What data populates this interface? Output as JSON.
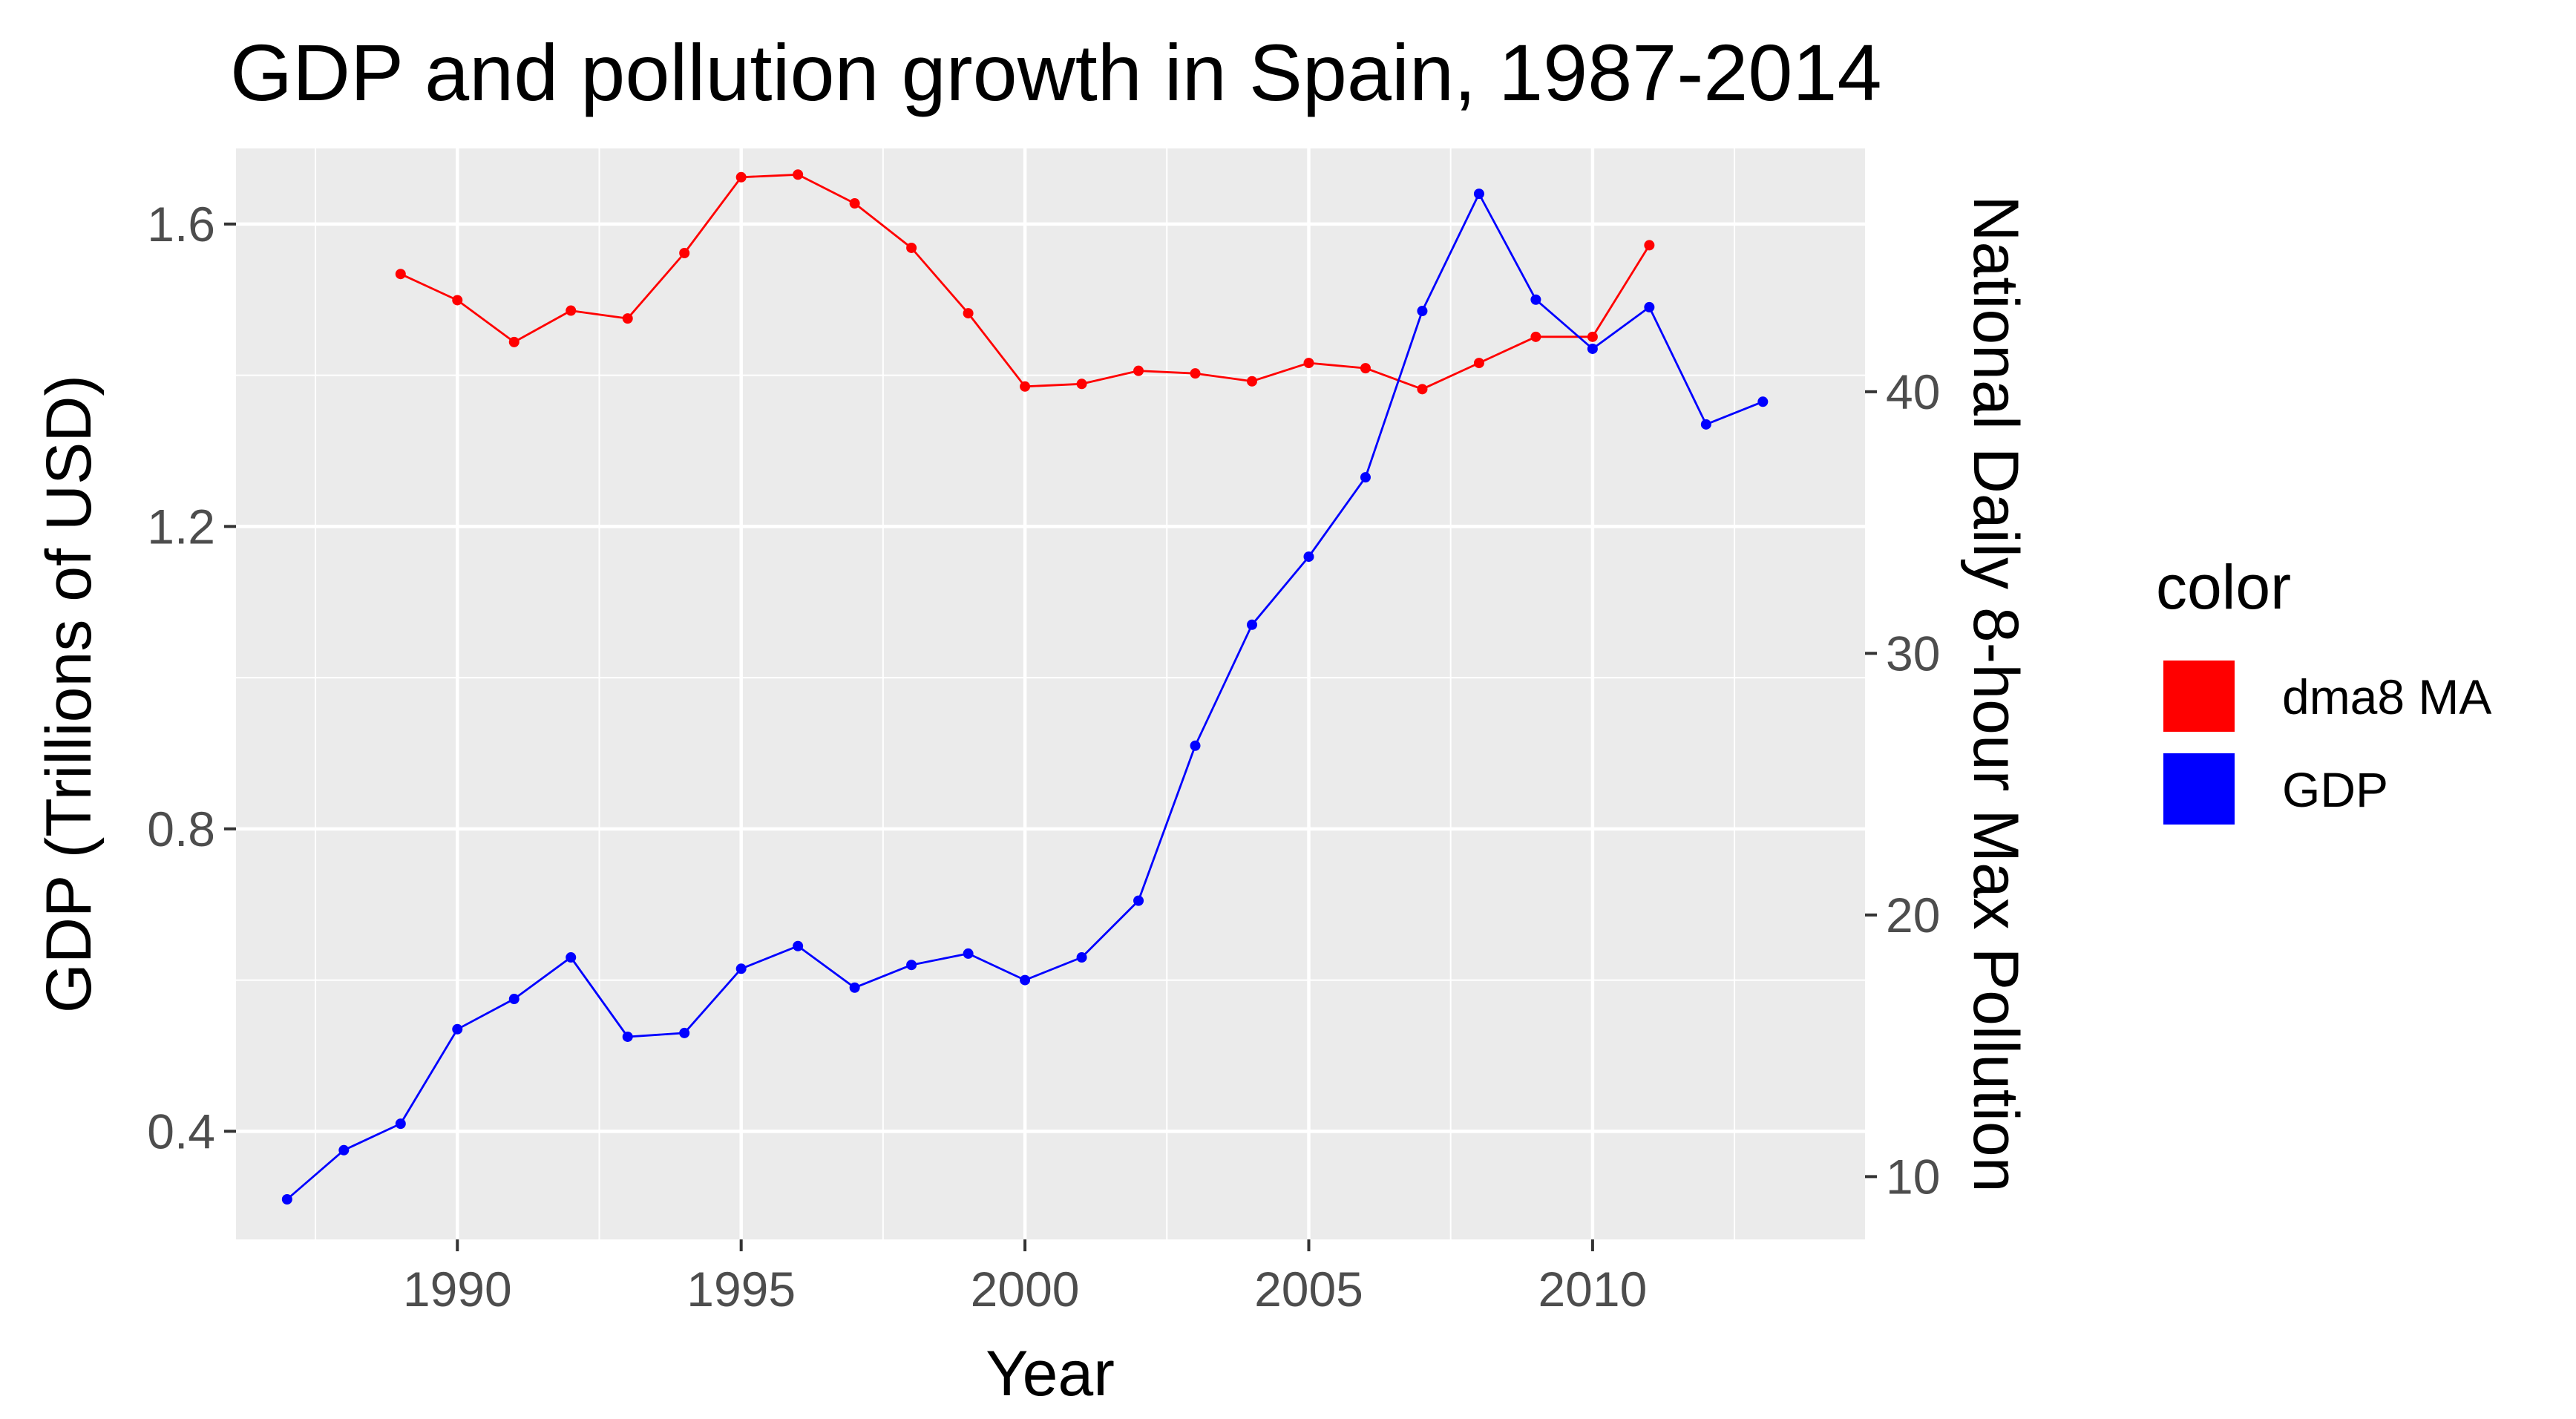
{
  "chart_data": {
    "type": "line",
    "title": "GDP and pollution growth in Spain, 1987-2014",
    "xlabel": "Year",
    "ylabel_left": "GDP (Trillions of USD)",
    "ylabel_right": "National Daily 8-hour Max Pollution",
    "xlim": [
      1986.1,
      2014.8
    ],
    "ylim_left": [
      0.257,
      1.7
    ],
    "ylim_right": [
      7.6,
      49.3
    ],
    "x_ticks": [
      1990,
      1995,
      2000,
      2005,
      2010
    ],
    "x_tick_labels": [
      "1990",
      "1995",
      "2000",
      "2005",
      "2010"
    ],
    "y_left_ticks": [
      0.4,
      0.8,
      1.2,
      1.6
    ],
    "y_left_tick_labels": [
      "0.4",
      "0.8",
      "1.2",
      "1.6"
    ],
    "y_right_ticks": [
      10,
      20,
      30,
      40
    ],
    "y_right_tick_labels": [
      "10",
      "20",
      "30",
      "40"
    ],
    "grid": true,
    "legend_title": "color",
    "legend_position": "right",
    "series": [
      {
        "name": "dma8 MA",
        "color": "#ff0000",
        "axis": "right",
        "x": [
          1989,
          1990,
          1991,
          1992,
          1993,
          1994,
          1995,
          1996,
          1997,
          1998,
          1999,
          2000,
          2001,
          2002,
          2003,
          2004,
          2005,
          2006,
          2007,
          2008,
          2009,
          2010,
          2011
        ],
        "values": [
          44.5,
          43.5,
          41.9,
          43.1,
          42.8,
          45.3,
          48.2,
          48.3,
          47.2,
          45.5,
          43.0,
          40.2,
          40.3,
          40.8,
          40.7,
          40.4,
          41.1,
          40.9,
          40.1,
          41.1,
          42.1,
          42.1,
          45.6
        ]
      },
      {
        "name": "GDP",
        "color": "#0000ff",
        "axis": "left",
        "x": [
          1987,
          1988,
          1989,
          1990,
          1991,
          1992,
          1993,
          1994,
          1995,
          1996,
          1997,
          1998,
          1999,
          2000,
          2001,
          2002,
          2003,
          2004,
          2005,
          2006,
          2007,
          2008,
          2009,
          2010,
          2011,
          2012,
          2013
        ],
        "values": [
          0.31,
          0.375,
          0.41,
          0.535,
          0.575,
          0.63,
          0.525,
          0.53,
          0.615,
          0.645,
          0.59,
          0.62,
          0.635,
          0.6,
          0.63,
          0.705,
          0.91,
          1.07,
          1.16,
          1.265,
          1.485,
          1.64,
          1.5,
          1.435,
          1.49,
          1.335,
          1.365
        ]
      }
    ]
  }
}
